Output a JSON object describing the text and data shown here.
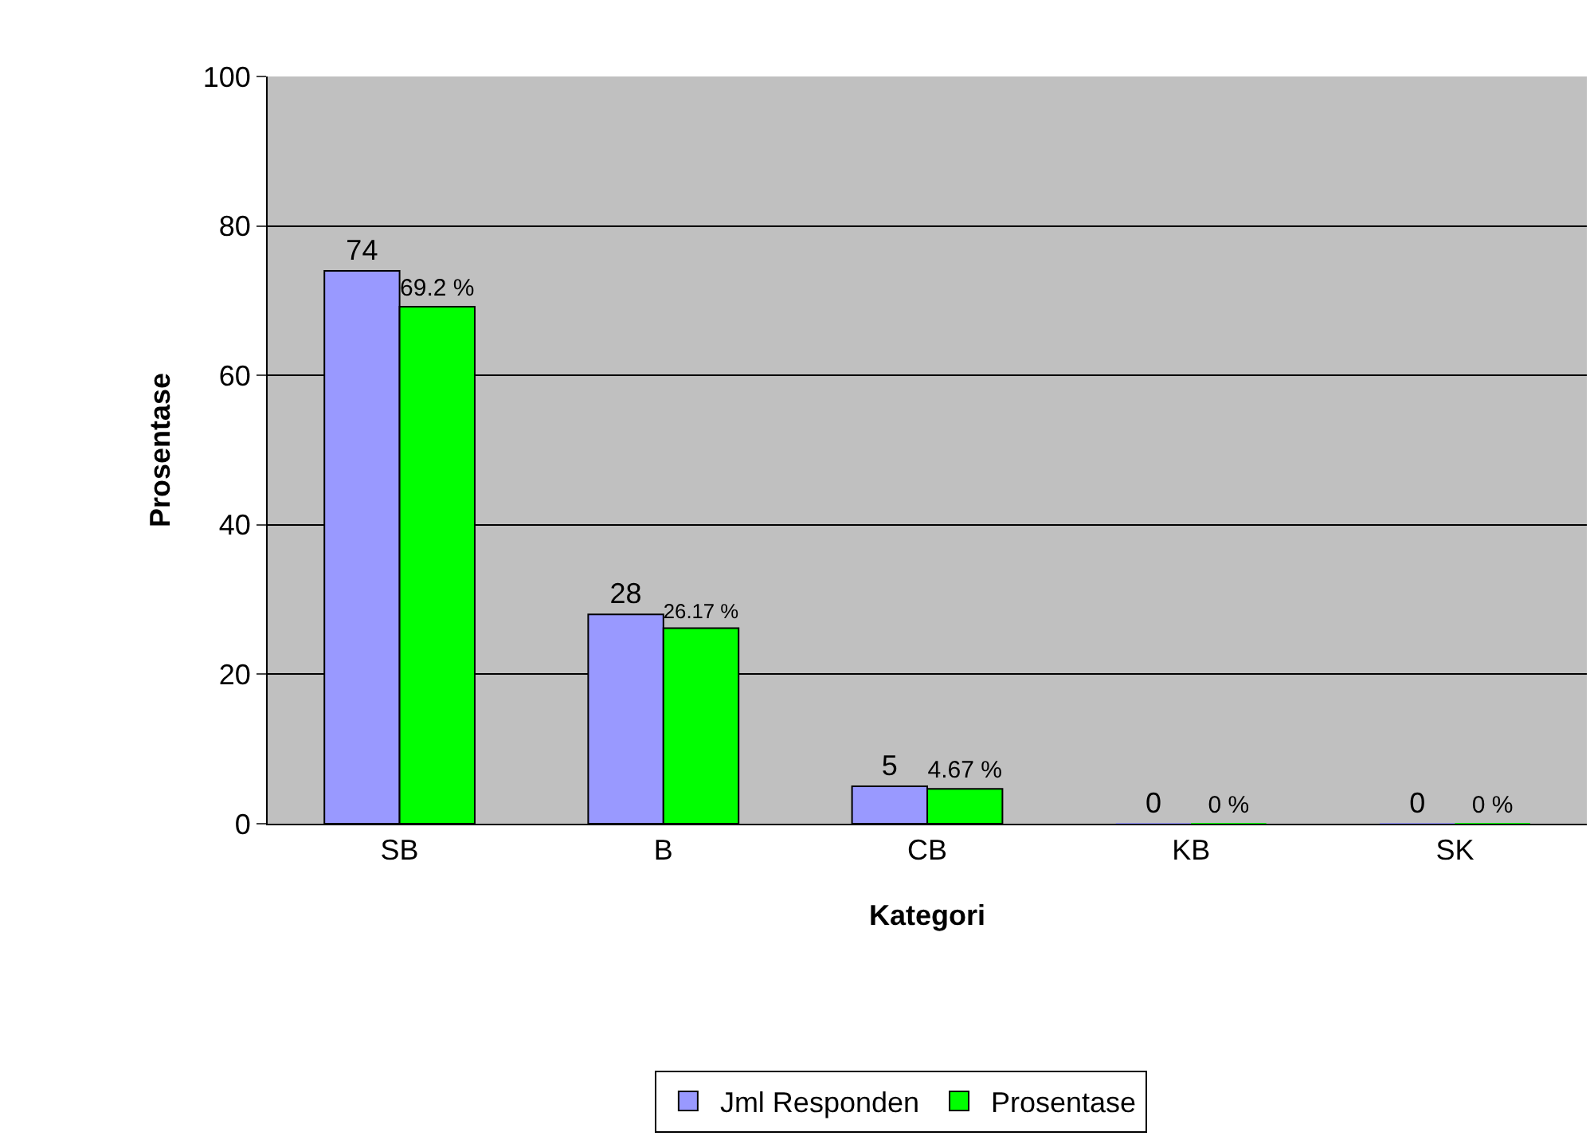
{
  "chart_data": {
    "type": "bar",
    "xlabel": "Kategori",
    "ylabel": "Prosentase",
    "categories": [
      "SB",
      "B",
      "CB",
      "KB",
      "SK"
    ],
    "series": [
      {
        "name": "Jml Responden",
        "color": "#9999ff",
        "values": [
          74,
          28,
          5,
          0,
          0
        ],
        "value_labels": [
          "74",
          "28",
          "5",
          "0",
          "0"
        ]
      },
      {
        "name": "Prosentase",
        "color": "#00ff00",
        "values": [
          69.2,
          26.17,
          4.67,
          0,
          0
        ],
        "value_labels": [
          "69.2 %",
          "26.17 %",
          "4.67 %",
          "0 %",
          "0 %"
        ]
      }
    ],
    "ylim": [
      0,
      100
    ],
    "yticks": [
      0,
      20,
      40,
      60,
      80,
      100
    ],
    "grid": "y",
    "legend": "bottom"
  }
}
